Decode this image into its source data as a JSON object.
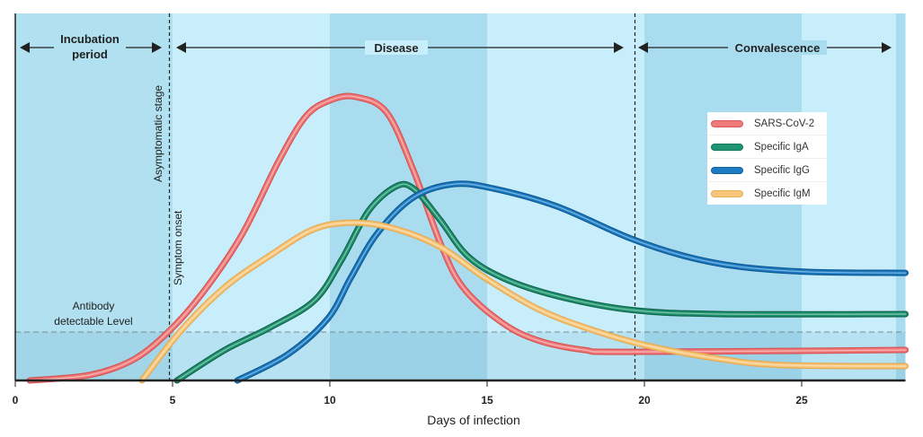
{
  "chart_data": {
    "type": "line",
    "xlabel": "Days of infection",
    "ylabel": "",
    "xlim": [
      0,
      28.3
    ],
    "ylim": [
      0,
      100
    ],
    "x_ticks": [
      "0",
      "5",
      "10",
      "15",
      "20",
      "25"
    ],
    "periods": [
      {
        "label_lines": [
          "Incubation",
          "period"
        ],
        "start": 0,
        "end": 4.9
      },
      {
        "label_lines": [
          "Disease"
        ],
        "start": 4.9,
        "end": 19.7
      },
      {
        "label_lines": [
          "Convalescence"
        ],
        "start": 19.7,
        "end": 28.3
      }
    ],
    "markers": [
      {
        "label": "Asymptomatic stage",
        "x": 4.9
      },
      {
        "label": "Symptom onset",
        "x": 4.9
      },
      {
        "label": "",
        "x": 19.7
      }
    ],
    "threshold": {
      "label_lines": [
        "Antibody",
        "detectable Level"
      ],
      "y": 13.2
    },
    "series": [
      {
        "name": "SARS-CoV-2",
        "color": "#f07a7a",
        "points": [
          [
            0.46,
            0
          ],
          [
            2.37,
            1.5
          ],
          [
            3.8,
            5.9
          ],
          [
            5,
            14.4
          ],
          [
            6.09,
            25.4
          ],
          [
            7.23,
            40.1
          ],
          [
            8.37,
            59.7
          ],
          [
            9.23,
            71.9
          ],
          [
            10,
            76.3
          ],
          [
            10.8,
            77.3
          ],
          [
            11.8,
            73.1
          ],
          [
            12.66,
            57.2
          ],
          [
            13.5,
            37.7
          ],
          [
            14.23,
            25.4
          ],
          [
            15.5,
            15.6
          ],
          [
            16.66,
            10.8
          ],
          [
            18.1,
            8.3
          ],
          [
            19.5,
            7.8
          ],
          [
            28.3,
            8.3
          ]
        ]
      },
      {
        "name": "Specific IgA",
        "color": "#1f9470",
        "points": [
          [
            5.14,
            0
          ],
          [
            6.66,
            8.3
          ],
          [
            8.09,
            14.4
          ],
          [
            9.51,
            21.8
          ],
          [
            10.37,
            32.8
          ],
          [
            11.23,
            46.2
          ],
          [
            12.09,
            52.8
          ],
          [
            12.66,
            52.3
          ],
          [
            13.5,
            43.8
          ],
          [
            14.37,
            34
          ],
          [
            15.51,
            27.9
          ],
          [
            17.23,
            23
          ],
          [
            19.5,
            19.3
          ],
          [
            22.37,
            18.1
          ],
          [
            28.3,
            18.1
          ]
        ]
      },
      {
        "name": "Specific IgG",
        "color": "#1b7cc4",
        "points": [
          [
            7.06,
            0
          ],
          [
            8.66,
            7.1
          ],
          [
            9.94,
            16.9
          ],
          [
            10.66,
            27.9
          ],
          [
            11.51,
            40.1
          ],
          [
            12.66,
            49.9
          ],
          [
            13.94,
            53.5
          ],
          [
            15.2,
            52.3
          ],
          [
            17.23,
            47.4
          ],
          [
            19.5,
            38.9
          ],
          [
            21.23,
            34
          ],
          [
            22.94,
            31.1
          ],
          [
            25.2,
            29.6
          ],
          [
            28.3,
            29.3
          ]
        ]
      },
      {
        "name": "Specific IgM",
        "color": "#f7c67a",
        "points": [
          [
            4.03,
            0
          ],
          [
            5.23,
            13.2
          ],
          [
            6.66,
            25.4
          ],
          [
            8.09,
            34
          ],
          [
            9.51,
            41.3
          ],
          [
            10.8,
            43
          ],
          [
            12.09,
            41.3
          ],
          [
            13.51,
            36.4
          ],
          [
            14.94,
            27.9
          ],
          [
            16.66,
            19.3
          ],
          [
            18.37,
            13.7
          ],
          [
            20.09,
            9.5
          ],
          [
            22.37,
            5.9
          ],
          [
            24.37,
            4.2
          ],
          [
            28.3,
            3.9
          ]
        ]
      }
    ]
  }
}
